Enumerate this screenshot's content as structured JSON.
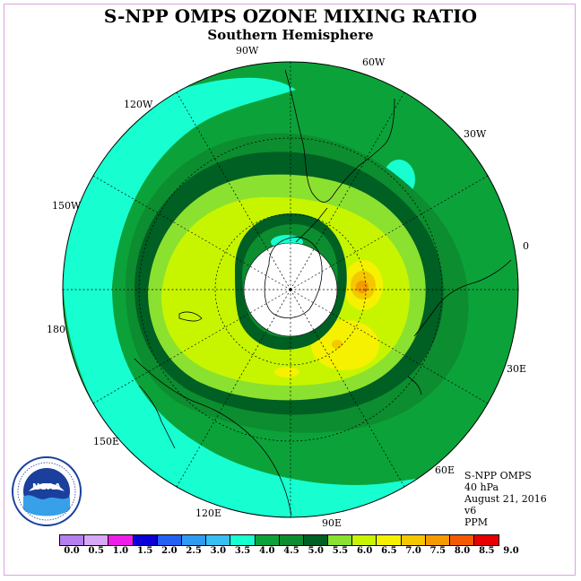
{
  "title": "S-NPP OMPS OZONE MIXING RATIO",
  "subtitle": "Southern Hemisphere",
  "longitude_labels": [
    {
      "text": "90W",
      "name": "lon-label-90w"
    },
    {
      "text": "60W",
      "name": "lon-label-60w"
    },
    {
      "text": "30W",
      "name": "lon-label-30w"
    },
    {
      "text": "0",
      "name": "lon-label-0"
    },
    {
      "text": "30E",
      "name": "lon-label-30e"
    },
    {
      "text": "60E",
      "name": "lon-label-60e"
    },
    {
      "text": "90E",
      "name": "lon-label-90e"
    },
    {
      "text": "120E",
      "name": "lon-label-120e"
    },
    {
      "text": "150E",
      "name": "lon-label-150e"
    },
    {
      "text": "180",
      "name": "lon-label-180"
    },
    {
      "text": "150W",
      "name": "lon-label-150w"
    },
    {
      "text": "120W",
      "name": "lon-label-120w"
    }
  ],
  "info": {
    "instrument": "S-NPP OMPS",
    "level": "40 hPa",
    "date": "August 21, 2016",
    "version": "v6",
    "units": "PPM"
  },
  "logo": {
    "text": "NOAA",
    "icon": "noaa-logo-icon"
  },
  "colorbar": {
    "ticks": [
      "0.0",
      "0.5",
      "1.0",
      "1.5",
      "2.0",
      "2.5",
      "3.0",
      "3.5",
      "4.0",
      "4.5",
      "5.0",
      "5.5",
      "6.0",
      "6.5",
      "7.0",
      "7.5",
      "8.0",
      "8.5",
      "9.0"
    ],
    "colors": [
      "#b57ff0",
      "#d7a8f5",
      "#ee1de9",
      "#0b00d8",
      "#2560f2",
      "#2e9cf2",
      "#38bff2",
      "#17ffd0",
      "#0ca23a",
      "#0c8d2f",
      "#005f22",
      "#8be12f",
      "#c7f500",
      "#f5f100",
      "#f5c700",
      "#f59a00",
      "#f55a00",
      "#e80000",
      "#7a4a24"
    ]
  },
  "map_colors": {
    "ocean_band": "#17ffd0",
    "green_4": "#0ca23a",
    "green_45": "#0c8d2f",
    "green_5": "#005f22",
    "lime_55": "#8be12f",
    "yellowgreen_6": "#c7f500",
    "yellow_65": "#f5f100",
    "orange_7": "#f5c700",
    "orange_75": "#f59a00"
  }
}
